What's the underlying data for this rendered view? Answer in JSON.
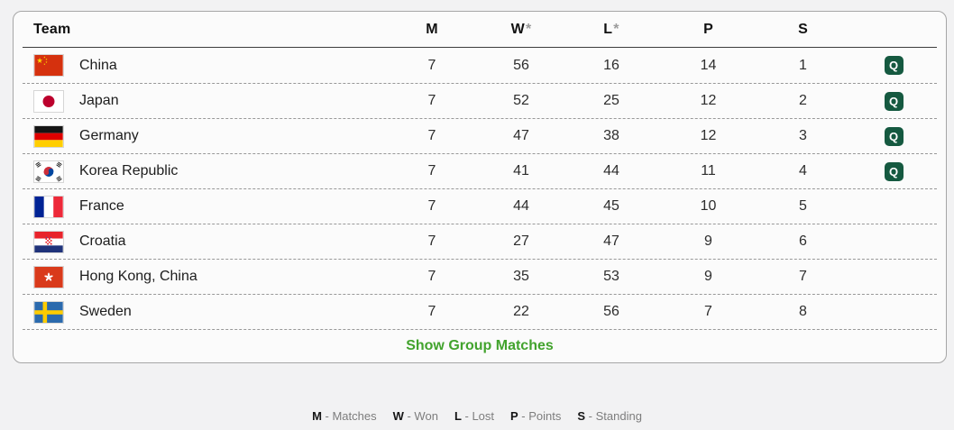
{
  "table": {
    "columns": [
      {
        "key": "team",
        "label": "Team",
        "suffix": ""
      },
      {
        "key": "m",
        "label": "M",
        "suffix": ""
      },
      {
        "key": "w",
        "label": "W",
        "suffix": "*"
      },
      {
        "key": "l",
        "label": "L",
        "suffix": "*"
      },
      {
        "key": "p",
        "label": "P",
        "suffix": ""
      },
      {
        "key": "s",
        "label": "S",
        "suffix": ""
      }
    ],
    "qualified_badge_label": "Q",
    "rows": [
      {
        "team": "China",
        "flag_icon": "flag-china-icon",
        "m": "7",
        "w": "56",
        "l": "16",
        "p": "14",
        "s": "1",
        "qualified": true
      },
      {
        "team": "Japan",
        "flag_icon": "flag-japan-icon",
        "m": "7",
        "w": "52",
        "l": "25",
        "p": "12",
        "s": "2",
        "qualified": true
      },
      {
        "team": "Germany",
        "flag_icon": "flag-germany-icon",
        "m": "7",
        "w": "47",
        "l": "38",
        "p": "12",
        "s": "3",
        "qualified": true
      },
      {
        "team": "Korea Republic",
        "flag_icon": "flag-korea-republic-icon",
        "m": "7",
        "w": "41",
        "l": "44",
        "p": "11",
        "s": "4",
        "qualified": true
      },
      {
        "team": "France",
        "flag_icon": "flag-france-icon",
        "m": "7",
        "w": "44",
        "l": "45",
        "p": "10",
        "s": "5",
        "qualified": false
      },
      {
        "team": "Croatia",
        "flag_icon": "flag-croatia-icon",
        "m": "7",
        "w": "27",
        "l": "47",
        "p": "9",
        "s": "6",
        "qualified": false
      },
      {
        "team": "Hong Kong, China",
        "flag_icon": "flag-hong-kong-china-icon",
        "m": "7",
        "w": "35",
        "l": "53",
        "p": "9",
        "s": "7",
        "qualified": false
      },
      {
        "team": "Sweden",
        "flag_icon": "flag-sweden-icon",
        "m": "7",
        "w": "22",
        "l": "56",
        "p": "7",
        "s": "8",
        "qualified": false
      }
    ]
  },
  "footer": {
    "show_group_matches_label": "Show Group Matches"
  },
  "legend": {
    "separator": " - ",
    "items": [
      {
        "abbr": "M",
        "label": "Matches"
      },
      {
        "abbr": "W",
        "label": "Won"
      },
      {
        "abbr": "L",
        "label": "Lost"
      },
      {
        "abbr": "P",
        "label": "Points"
      },
      {
        "abbr": "S",
        "label": "Standing"
      }
    ]
  },
  "colors": {
    "accent_green": "#42a32d",
    "qualified_badge_green": "#155940"
  }
}
